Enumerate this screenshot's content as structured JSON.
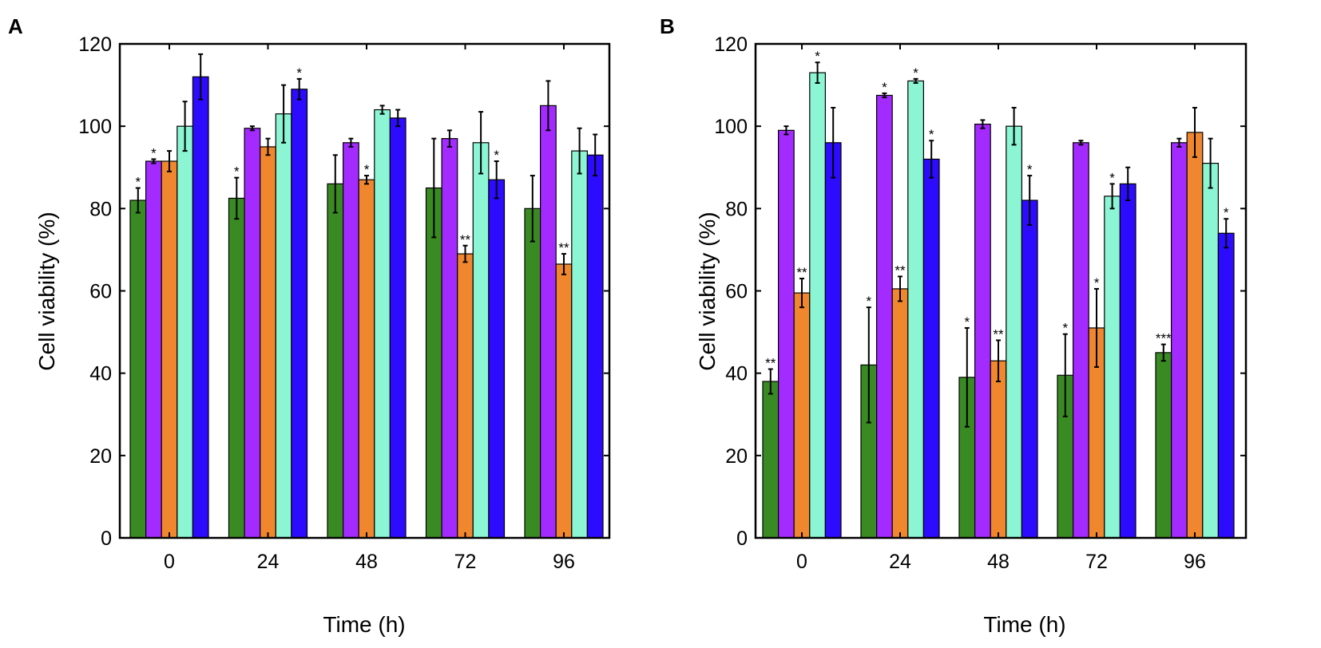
{
  "chart_data": [
    {
      "type": "bar",
      "panel": "A",
      "xlabel": "Time (h)",
      "ylabel": "Cell viability (%)",
      "ylim": [
        0,
        120
      ],
      "yticks": [
        0,
        20,
        40,
        60,
        80,
        100,
        120
      ],
      "categories": [
        "0",
        "24",
        "48",
        "72",
        "96"
      ],
      "series": [
        {
          "color": "#3a8a24",
          "values": [
            82,
            82.5,
            86,
            85,
            80
          ],
          "errors": [
            3,
            5,
            7,
            12,
            8
          ],
          "sig": [
            "*",
            "*",
            "",
            "",
            ""
          ]
        },
        {
          "color": "#a42bff",
          "values": [
            91.5,
            99.5,
            96,
            97,
            105
          ],
          "errors": [
            0.5,
            0.5,
            1,
            2,
            6
          ],
          "sig": [
            "*",
            "",
            "",
            "",
            ""
          ]
        },
        {
          "color": "#f0872f",
          "values": [
            91.5,
            95,
            87,
            69,
            66.5
          ],
          "errors": [
            2.5,
            2,
            1,
            2,
            2.5
          ],
          "sig": [
            "",
            "",
            "*",
            "**",
            "**"
          ]
        },
        {
          "color": "#8cf5d4",
          "values": [
            100,
            103,
            104,
            96,
            94
          ],
          "errors": [
            6,
            7,
            1,
            7.5,
            5.5
          ],
          "sig": [
            "",
            "",
            "",
            "",
            ""
          ]
        },
        {
          "color": "#2d0bff",
          "values": [
            112,
            109,
            102,
            87,
            93
          ],
          "errors": [
            5.5,
            2.5,
            2,
            4.5,
            5
          ],
          "sig": [
            "",
            "*",
            "",
            "*",
            ""
          ]
        }
      ]
    },
    {
      "type": "bar",
      "panel": "B",
      "xlabel": "Time (h)",
      "ylabel": "Cell viability (%)",
      "ylim": [
        0,
        120
      ],
      "yticks": [
        0,
        20,
        40,
        60,
        80,
        100,
        120
      ],
      "categories": [
        "0",
        "24",
        "48",
        "72",
        "96"
      ],
      "series": [
        {
          "color": "#3a8a24",
          "values": [
            38,
            42,
            39,
            39.5,
            45
          ],
          "errors": [
            3,
            14,
            12,
            10,
            2
          ],
          "sig": [
            "**",
            "*",
            "*",
            "*",
            "***"
          ]
        },
        {
          "color": "#a42bff",
          "values": [
            99,
            107.5,
            100.5,
            96,
            96
          ],
          "errors": [
            1,
            0.5,
            1,
            0.5,
            1
          ],
          "sig": [
            "",
            "*",
            "",
            "",
            ""
          ]
        },
        {
          "color": "#f0872f",
          "values": [
            59.5,
            60.5,
            43,
            51,
            98.5
          ],
          "errors": [
            3.5,
            3,
            5,
            9.5,
            6
          ],
          "sig": [
            "**",
            "**",
            "**",
            "*",
            ""
          ]
        },
        {
          "color": "#8cf5d4",
          "values": [
            113,
            111,
            100,
            83,
            91
          ],
          "errors": [
            2.5,
            0.5,
            4.5,
            3,
            6
          ],
          "sig": [
            "*",
            "*",
            "",
            "*",
            ""
          ]
        },
        {
          "color": "#2d0bff",
          "values": [
            96,
            92,
            82,
            86,
            74
          ],
          "errors": [
            8.5,
            4.5,
            6,
            4,
            3.5
          ],
          "sig": [
            "",
            "*",
            "*",
            "",
            "*"
          ]
        }
      ]
    }
  ]
}
